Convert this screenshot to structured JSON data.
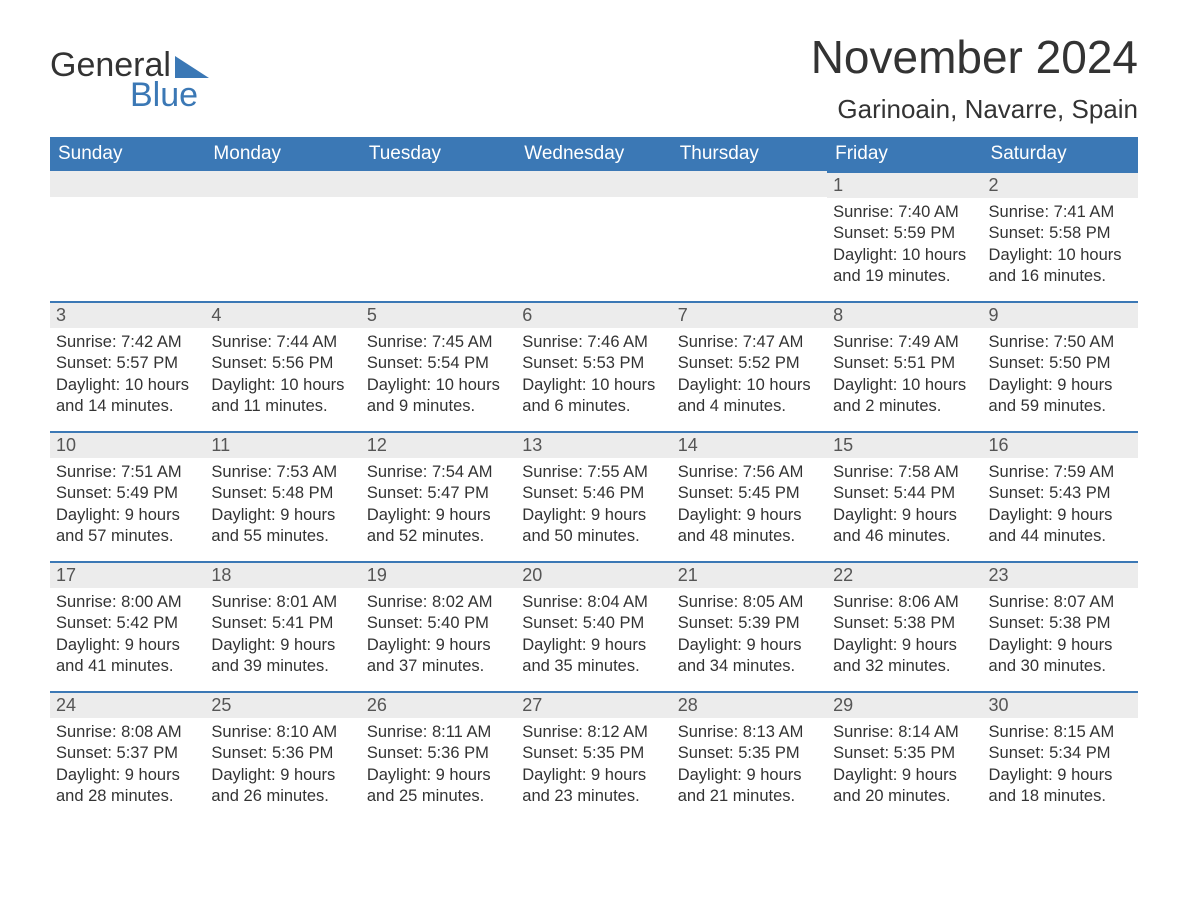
{
  "logo": {
    "word1": "General",
    "word2": "Blue"
  },
  "title": "November 2024",
  "location": "Garinoain, Navarre, Spain",
  "colors": {
    "accent": "#3b78b5",
    "header_bg": "#3b78b5",
    "header_text": "#ffffff",
    "daybar_bg": "#ececec",
    "text": "#333333"
  },
  "day_headers": [
    "Sunday",
    "Monday",
    "Tuesday",
    "Wednesday",
    "Thursday",
    "Friday",
    "Saturday"
  ],
  "weeks": [
    [
      {
        "empty": true
      },
      {
        "empty": true
      },
      {
        "empty": true
      },
      {
        "empty": true
      },
      {
        "empty": true
      },
      {
        "day": "1",
        "sunrise": "Sunrise: 7:40 AM",
        "sunset": "Sunset: 5:59 PM",
        "daylight1": "Daylight: 10 hours",
        "daylight2": "and 19 minutes."
      },
      {
        "day": "2",
        "sunrise": "Sunrise: 7:41 AM",
        "sunset": "Sunset: 5:58 PM",
        "daylight1": "Daylight: 10 hours",
        "daylight2": "and 16 minutes."
      }
    ],
    [
      {
        "day": "3",
        "sunrise": "Sunrise: 7:42 AM",
        "sunset": "Sunset: 5:57 PM",
        "daylight1": "Daylight: 10 hours",
        "daylight2": "and 14 minutes."
      },
      {
        "day": "4",
        "sunrise": "Sunrise: 7:44 AM",
        "sunset": "Sunset: 5:56 PM",
        "daylight1": "Daylight: 10 hours",
        "daylight2": "and 11 minutes."
      },
      {
        "day": "5",
        "sunrise": "Sunrise: 7:45 AM",
        "sunset": "Sunset: 5:54 PM",
        "daylight1": "Daylight: 10 hours",
        "daylight2": "and 9 minutes."
      },
      {
        "day": "6",
        "sunrise": "Sunrise: 7:46 AM",
        "sunset": "Sunset: 5:53 PM",
        "daylight1": "Daylight: 10 hours",
        "daylight2": "and 6 minutes."
      },
      {
        "day": "7",
        "sunrise": "Sunrise: 7:47 AM",
        "sunset": "Sunset: 5:52 PM",
        "daylight1": "Daylight: 10 hours",
        "daylight2": "and 4 minutes."
      },
      {
        "day": "8",
        "sunrise": "Sunrise: 7:49 AM",
        "sunset": "Sunset: 5:51 PM",
        "daylight1": "Daylight: 10 hours",
        "daylight2": "and 2 minutes."
      },
      {
        "day": "9",
        "sunrise": "Sunrise: 7:50 AM",
        "sunset": "Sunset: 5:50 PM",
        "daylight1": "Daylight: 9 hours",
        "daylight2": "and 59 minutes."
      }
    ],
    [
      {
        "day": "10",
        "sunrise": "Sunrise: 7:51 AM",
        "sunset": "Sunset: 5:49 PM",
        "daylight1": "Daylight: 9 hours",
        "daylight2": "and 57 minutes."
      },
      {
        "day": "11",
        "sunrise": "Sunrise: 7:53 AM",
        "sunset": "Sunset: 5:48 PM",
        "daylight1": "Daylight: 9 hours",
        "daylight2": "and 55 minutes."
      },
      {
        "day": "12",
        "sunrise": "Sunrise: 7:54 AM",
        "sunset": "Sunset: 5:47 PM",
        "daylight1": "Daylight: 9 hours",
        "daylight2": "and 52 minutes."
      },
      {
        "day": "13",
        "sunrise": "Sunrise: 7:55 AM",
        "sunset": "Sunset: 5:46 PM",
        "daylight1": "Daylight: 9 hours",
        "daylight2": "and 50 minutes."
      },
      {
        "day": "14",
        "sunrise": "Sunrise: 7:56 AM",
        "sunset": "Sunset: 5:45 PM",
        "daylight1": "Daylight: 9 hours",
        "daylight2": "and 48 minutes."
      },
      {
        "day": "15",
        "sunrise": "Sunrise: 7:58 AM",
        "sunset": "Sunset: 5:44 PM",
        "daylight1": "Daylight: 9 hours",
        "daylight2": "and 46 minutes."
      },
      {
        "day": "16",
        "sunrise": "Sunrise: 7:59 AM",
        "sunset": "Sunset: 5:43 PM",
        "daylight1": "Daylight: 9 hours",
        "daylight2": "and 44 minutes."
      }
    ],
    [
      {
        "day": "17",
        "sunrise": "Sunrise: 8:00 AM",
        "sunset": "Sunset: 5:42 PM",
        "daylight1": "Daylight: 9 hours",
        "daylight2": "and 41 minutes."
      },
      {
        "day": "18",
        "sunrise": "Sunrise: 8:01 AM",
        "sunset": "Sunset: 5:41 PM",
        "daylight1": "Daylight: 9 hours",
        "daylight2": "and 39 minutes."
      },
      {
        "day": "19",
        "sunrise": "Sunrise: 8:02 AM",
        "sunset": "Sunset: 5:40 PM",
        "daylight1": "Daylight: 9 hours",
        "daylight2": "and 37 minutes."
      },
      {
        "day": "20",
        "sunrise": "Sunrise: 8:04 AM",
        "sunset": "Sunset: 5:40 PM",
        "daylight1": "Daylight: 9 hours",
        "daylight2": "and 35 minutes."
      },
      {
        "day": "21",
        "sunrise": "Sunrise: 8:05 AM",
        "sunset": "Sunset: 5:39 PM",
        "daylight1": "Daylight: 9 hours",
        "daylight2": "and 34 minutes."
      },
      {
        "day": "22",
        "sunrise": "Sunrise: 8:06 AM",
        "sunset": "Sunset: 5:38 PM",
        "daylight1": "Daylight: 9 hours",
        "daylight2": "and 32 minutes."
      },
      {
        "day": "23",
        "sunrise": "Sunrise: 8:07 AM",
        "sunset": "Sunset: 5:38 PM",
        "daylight1": "Daylight: 9 hours",
        "daylight2": "and 30 minutes."
      }
    ],
    [
      {
        "day": "24",
        "sunrise": "Sunrise: 8:08 AM",
        "sunset": "Sunset: 5:37 PM",
        "daylight1": "Daylight: 9 hours",
        "daylight2": "and 28 minutes."
      },
      {
        "day": "25",
        "sunrise": "Sunrise: 8:10 AM",
        "sunset": "Sunset: 5:36 PM",
        "daylight1": "Daylight: 9 hours",
        "daylight2": "and 26 minutes."
      },
      {
        "day": "26",
        "sunrise": "Sunrise: 8:11 AM",
        "sunset": "Sunset: 5:36 PM",
        "daylight1": "Daylight: 9 hours",
        "daylight2": "and 25 minutes."
      },
      {
        "day": "27",
        "sunrise": "Sunrise: 8:12 AM",
        "sunset": "Sunset: 5:35 PM",
        "daylight1": "Daylight: 9 hours",
        "daylight2": "and 23 minutes."
      },
      {
        "day": "28",
        "sunrise": "Sunrise: 8:13 AM",
        "sunset": "Sunset: 5:35 PM",
        "daylight1": "Daylight: 9 hours",
        "daylight2": "and 21 minutes."
      },
      {
        "day": "29",
        "sunrise": "Sunrise: 8:14 AM",
        "sunset": "Sunset: 5:35 PM",
        "daylight1": "Daylight: 9 hours",
        "daylight2": "and 20 minutes."
      },
      {
        "day": "30",
        "sunrise": "Sunrise: 8:15 AM",
        "sunset": "Sunset: 5:34 PM",
        "daylight1": "Daylight: 9 hours",
        "daylight2": "and 18 minutes."
      }
    ]
  ]
}
